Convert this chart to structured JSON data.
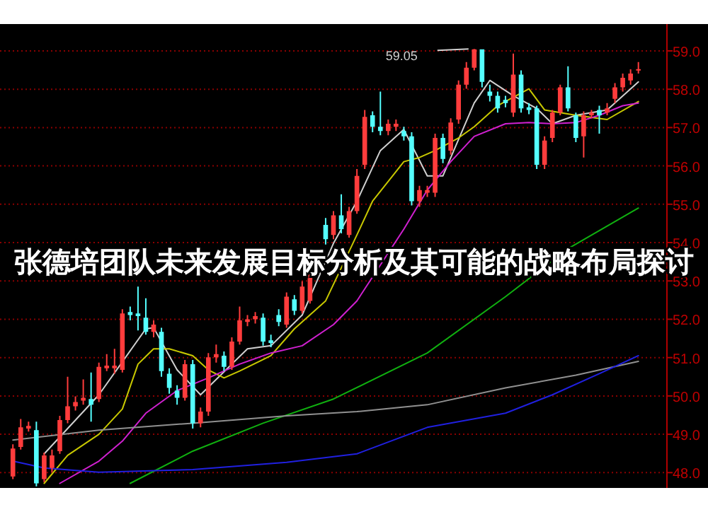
{
  "chart_data": {
    "type": "candlestick",
    "title": "张德培团队未来发展目标分析及其可能的战略布局探讨",
    "categories": [
      null,
      null,
      null,
      null,
      null,
      null,
      null,
      null,
      null,
      null,
      null,
      null,
      null,
      null,
      null,
      null,
      null,
      null,
      null,
      null,
      null,
      null,
      null,
      null,
      null,
      null,
      null,
      null,
      null,
      null,
      null,
      null,
      null,
      null,
      null,
      null,
      null,
      null,
      null,
      null,
      null,
      null,
      null,
      null,
      null,
      null,
      null,
      null,
      null,
      null,
      null,
      null,
      null,
      null,
      null,
      null,
      null,
      null,
      null,
      null,
      null,
      null,
      null,
      null,
      null,
      null,
      null,
      null,
      null,
      null,
      null,
      null,
      null,
      null,
      null,
      null,
      null,
      null,
      null,
      null,
      null
    ],
    "ohlc": [
      [
        47.9,
        48.74,
        47.83,
        48.63
      ],
      [
        48.67,
        49.4,
        48.6,
        49.18
      ],
      [
        49.15,
        49.33,
        49.07,
        49.22
      ],
      [
        49.11,
        49.33,
        47.64,
        47.72
      ],
      [
        47.83,
        48.52,
        47.75,
        48.45
      ],
      [
        48.12,
        48.6,
        48.01,
        48.45
      ],
      [
        48.56,
        49.48,
        48.49,
        49.37
      ],
      [
        49.37,
        50.5,
        49.29,
        49.73
      ],
      [
        49.73,
        49.99,
        49.62,
        49.84
      ],
      [
        49.88,
        50.43,
        49.77,
        49.95
      ],
      [
        49.92,
        50.61,
        49.33,
        49.77
      ],
      [
        49.92,
        50.87,
        49.84,
        50.76
      ],
      [
        50.72,
        51.09,
        50.65,
        50.79
      ],
      [
        50.72,
        51.23,
        50.58,
        50.79
      ],
      [
        50.68,
        52.26,
        50.61,
        52.15
      ],
      [
        52.19,
        52.33,
        51.97,
        52.11
      ],
      [
        52.15,
        52.85,
        51.71,
        52.08
      ],
      [
        52.04,
        52.55,
        51.6,
        51.67
      ],
      [
        51.67,
        51.97,
        51.53,
        51.86
      ],
      [
        51.67,
        51.78,
        50.5,
        50.65
      ],
      [
        50.58,
        50.72,
        50.06,
        50.21
      ],
      [
        50.14,
        50.28,
        49.77,
        49.95
      ],
      [
        49.95,
        50.94,
        49.88,
        50.83
      ],
      [
        50.83,
        50.94,
        49.15,
        49.29
      ],
      [
        49.29,
        49.7,
        49.18,
        49.59
      ],
      [
        49.59,
        51.12,
        49.48,
        51.01
      ],
      [
        51.01,
        51.34,
        50.87,
        51.09
      ],
      [
        51.05,
        51.16,
        50.65,
        50.76
      ],
      [
        50.76,
        51.53,
        50.68,
        51.42
      ],
      [
        51.42,
        52.33,
        51.34,
        51.97
      ],
      [
        51.93,
        52.11,
        51.82,
        52.0
      ],
      [
        52.0,
        52.19,
        51.89,
        52.08
      ],
      [
        52.04,
        52.15,
        51.31,
        51.42
      ],
      [
        51.45,
        51.6,
        51.27,
        51.38
      ],
      [
        52.11,
        52.26,
        51.82,
        51.93
      ],
      [
        51.86,
        52.7,
        51.78,
        52.59
      ],
      [
        52.52,
        52.63,
        52.11,
        52.22
      ],
      [
        52.22,
        52.99,
        52.15,
        52.85
      ],
      [
        52.48,
        53.36,
        52.41,
        53.21
      ],
      null,
      [
        54.46,
        54.64,
        53.95,
        54.09
      ],
      [
        54.2,
        54.82,
        54.09,
        54.71
      ],
      [
        54.71,
        55.26,
        54.24,
        54.35
      ],
      [
        54.2,
        54.93,
        54.13,
        54.82
      ],
      [
        54.82,
        55.92,
        54.75,
        55.74
      ],
      [
        56.03,
        57.46,
        55.92,
        57.28
      ],
      [
        57.32,
        57.42,
        56.88,
        57.02
      ],
      [
        57.02,
        57.94,
        56.8,
        56.91
      ],
      [
        56.91,
        57.21,
        56.8,
        57.1
      ],
      [
        57.02,
        57.21,
        56.91,
        57.1
      ],
      [
        56.91,
        57.02,
        56.66,
        56.77
      ],
      [
        56.77,
        56.88,
        54.97,
        55.08
      ],
      [
        55.08,
        55.48,
        54.93,
        55.37
      ],
      [
        55.3,
        55.48,
        55.19,
        55.37
      ],
      [
        55.3,
        56.84,
        55.19,
        56.73
      ],
      [
        56.73,
        56.84,
        56.07,
        56.18
      ],
      [
        56.4,
        57.24,
        56.29,
        57.13
      ],
      [
        57.21,
        58.23,
        57.1,
        58.12
      ],
      [
        58.12,
        58.71,
        58.01,
        58.56
      ],
      [
        58.56,
        59.05,
        58.49,
        59.04
      ],
      [
        59.04,
        59.04,
        58.05,
        58.19
      ],
      [
        57.94,
        58.12,
        57.68,
        57.83
      ],
      [
        57.83,
        57.94,
        57.39,
        57.5
      ],
      [
        57.72,
        57.83,
        57.53,
        57.64
      ],
      [
        57.39,
        58.93,
        57.28,
        58.38
      ],
      [
        58.38,
        58.49,
        57.39,
        57.5
      ],
      [
        57.53,
        57.64,
        57.35,
        57.46
      ],
      [
        57.5,
        57.57,
        55.92,
        56.03
      ],
      [
        56.03,
        56.77,
        55.92,
        56.66
      ],
      [
        56.73,
        57.46,
        56.62,
        57.39
      ],
      [
        57.39,
        58.12,
        57.32,
        58.05
      ],
      [
        58.05,
        58.6,
        57.42,
        57.5
      ],
      [
        57.32,
        57.39,
        56.62,
        56.73
      ],
      [
        56.77,
        57.42,
        56.22,
        57.32
      ],
      [
        57.32,
        57.46,
        57.24,
        57.39
      ],
      [
        57.46,
        57.57,
        56.84,
        57.32
      ],
      [
        57.39,
        57.64,
        57.32,
        57.5
      ],
      [
        57.75,
        58.16,
        57.64,
        58.05
      ],
      [
        58.05,
        58.41,
        57.94,
        58.3
      ],
      [
        58.23,
        58.52,
        58.12,
        58.41
      ],
      [
        58.49,
        58.71,
        58.41,
        58.52
      ]
    ],
    "series": [
      {
        "type": "line",
        "color": "#d0d0d0",
        "values": [
          null,
          null,
          null,
          null,
          48.49,
          null,
          null,
          null,
          null,
          null,
          null,
          50.03,
          null,
          null,
          null,
          null,
          null,
          51.75,
          51.78,
          null,
          null,
          50.68,
          null,
          null,
          50.03,
          null,
          null,
          null,
          null,
          null,
          51.23,
          null,
          null,
          51.31,
          null,
          null,
          null,
          52.11,
          null,
          null,
          null,
          53.98,
          null,
          null,
          55.08,
          null,
          null,
          56.4,
          null,
          null,
          56.95,
          null,
          null,
          55.74,
          null,
          55.74,
          null,
          null,
          null,
          57.64,
          null,
          58.23,
          null,
          null,
          57.83,
          null,
          null,
          57.5,
          null,
          57.1,
          null,
          null,
          57.32,
          null,
          null,
          null,
          57.46,
          null,
          null,
          null,
          58.19
        ]
      },
      {
        "type": "line",
        "color": "#c8c800",
        "values": [
          null,
          null,
          null,
          null,
          47.72,
          null,
          null,
          48.45,
          null,
          null,
          null,
          49.0,
          null,
          null,
          49.66,
          null,
          50.83,
          null,
          51.23,
          null,
          51.23,
          null,
          null,
          51.05,
          null,
          50.68,
          null,
          50.47,
          null,
          50.65,
          null,
          null,
          null,
          51.05,
          null,
          null,
          51.75,
          null,
          null,
          null,
          52.48,
          null,
          null,
          null,
          54.2,
          null,
          55.08,
          null,
          null,
          null,
          56.11,
          null,
          56.22,
          null,
          56.4,
          null,
          null,
          56.73,
          null,
          57.02,
          null,
          null,
          57.57,
          null,
          null,
          null,
          58.01,
          null,
          57.46,
          null,
          null,
          null,
          57.32,
          null,
          null,
          null,
          57.21,
          null,
          null,
          null,
          57.68
        ]
      },
      {
        "type": "line",
        "color": "#d020d0",
        "values": [
          null,
          null,
          null,
          null,
          null,
          null,
          47.72,
          null,
          null,
          null,
          null,
          48.3,
          null,
          null,
          48.82,
          null,
          null,
          49.55,
          null,
          null,
          null,
          50.14,
          null,
          null,
          null,
          50.47,
          null,
          null,
          null,
          50.83,
          null,
          null,
          null,
          51.12,
          null,
          null,
          null,
          51.31,
          null,
          null,
          null,
          51.86,
          null,
          null,
          52.48,
          null,
          null,
          null,
          null,
          null,
          54.35,
          null,
          null,
          55.37,
          null,
          null,
          56.11,
          null,
          null,
          56.77,
          null,
          null,
          null,
          57.1,
          null,
          null,
          57.13,
          null,
          null,
          57.1,
          null,
          null,
          57.13,
          null,
          null,
          57.32,
          null,
          null,
          57.57,
          null,
          57.64
        ]
      },
      {
        "type": "line",
        "color": "#10b010",
        "values": [
          null,
          null,
          null,
          null,
          null,
          null,
          null,
          null,
          null,
          null,
          null,
          null,
          null,
          null,
          null,
          47.72,
          null,
          null,
          null,
          null,
          null,
          null,
          null,
          48.56,
          null,
          null,
          null,
          null,
          null,
          null,
          null,
          null,
          49.29,
          null,
          null,
          null,
          null,
          null,
          null,
          null,
          null,
          49.92,
          null,
          null,
          null,
          null,
          null,
          null,
          null,
          null,
          null,
          null,
          null,
          51.12,
          null,
          null,
          null,
          null,
          null,
          null,
          null,
          null,
          null,
          52.59,
          null,
          null,
          null,
          null,
          null,
          null,
          null,
          53.84,
          null,
          null,
          null,
          null,
          null,
          null,
          null,
          null,
          54.9
        ]
      },
      {
        "type": "line",
        "color": "#909090",
        "values": [
          48.85,
          null,
          null,
          null,
          null,
          null,
          null,
          null,
          null,
          null,
          null,
          49.11,
          null,
          null,
          null,
          null,
          null,
          null,
          null,
          null,
          null,
          null,
          null,
          49.29,
          null,
          null,
          null,
          null,
          null,
          null,
          null,
          null,
          null,
          null,
          null,
          49.48,
          null,
          null,
          null,
          null,
          null,
          null,
          null,
          null,
          49.59,
          null,
          null,
          null,
          null,
          null,
          null,
          null,
          null,
          49.77,
          null,
          null,
          null,
          null,
          null,
          null,
          null,
          null,
          null,
          50.21,
          null,
          null,
          null,
          null,
          null,
          null,
          null,
          null,
          50.54,
          null,
          null,
          null,
          null,
          null,
          null,
          null,
          50.9
        ]
      },
      {
        "type": "line",
        "color": "#2020e0",
        "values": [
          48.3,
          null,
          null,
          null,
          48.12,
          null,
          null,
          null,
          null,
          null,
          null,
          48.01,
          null,
          null,
          null,
          null,
          null,
          null,
          null,
          null,
          null,
          null,
          null,
          48.08,
          null,
          null,
          null,
          null,
          null,
          null,
          null,
          null,
          null,
          null,
          null,
          48.27,
          null,
          null,
          null,
          null,
          null,
          null,
          null,
          null,
          48.49,
          null,
          null,
          null,
          null,
          null,
          null,
          null,
          null,
          49.18,
          null,
          null,
          null,
          null,
          null,
          null,
          null,
          null,
          null,
          49.55,
          null,
          null,
          null,
          null,
          null,
          50.03,
          null,
          null,
          null,
          null,
          null,
          50.58,
          null,
          null,
          null,
          null,
          51.05
        ]
      }
    ],
    "ylim": [
      47.6,
      59.7
    ],
    "yticks": [
      {
        "value": 48,
        "label": "48.0"
      },
      {
        "value": 49,
        "label": "49.0"
      },
      {
        "value": 50,
        "label": "50.0"
      },
      {
        "value": 51,
        "label": "51.0"
      },
      {
        "value": 52,
        "label": "52.0"
      },
      {
        "value": 53,
        "label": "53.0"
      },
      {
        "value": 54,
        "label": "54.0"
      },
      {
        "value": 55,
        "label": "55.0"
      },
      {
        "value": 56,
        "label": "56.0"
      },
      {
        "value": 57,
        "label": "57.0"
      },
      {
        "value": 58,
        "label": "58.0"
      },
      {
        "value": 59,
        "label": "59.0"
      }
    ],
    "grid": "y",
    "tick_labels": "y",
    "annotations": [
      "59.05"
    ]
  }
}
